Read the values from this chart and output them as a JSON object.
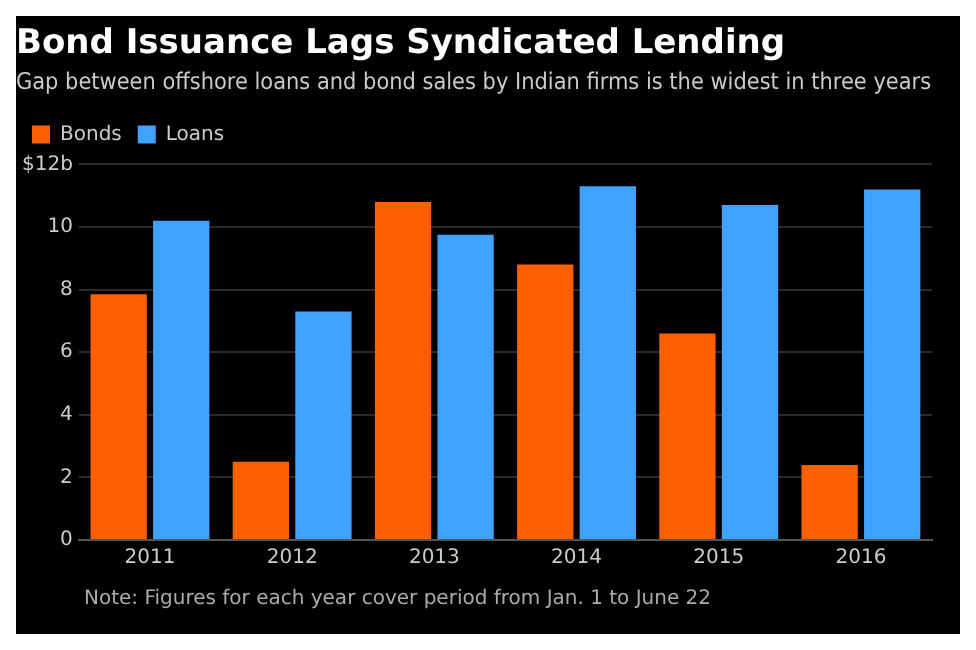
{
  "chart_data": {
    "type": "bar",
    "title": "Bond Issuance Lags Syndicated Lending",
    "subtitle": "Gap between offshore loans and bond sales by Indian firms is the widest in three years",
    "categories": [
      "2011",
      "2012",
      "2013",
      "2014",
      "2015",
      "2016"
    ],
    "series": [
      {
        "name": "Bonds",
        "color": "#ff5f00",
        "values": [
          7.85,
          2.5,
          10.8,
          8.8,
          6.6,
          2.4
        ]
      },
      {
        "name": "Loans",
        "color": "#3fa2ff",
        "values": [
          10.2,
          7.3,
          9.75,
          11.3,
          10.7,
          11.2
        ]
      }
    ],
    "ylim": [
      0,
      12
    ],
    "yticks": [
      0,
      2,
      4,
      6,
      8,
      10,
      {
        "value": 12,
        "label": "$12b"
      }
    ],
    "grid": "y",
    "legend": "top left",
    "annotations": [
      "Note: Figures for each year cover period from Jan. 1 to June 22"
    ]
  }
}
